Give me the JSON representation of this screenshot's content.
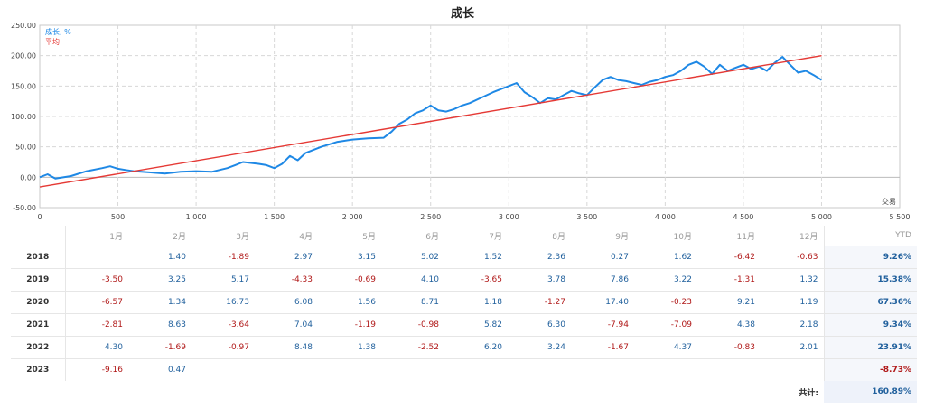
{
  "chart_data": {
    "type": "line",
    "title": "成长",
    "xlabel": "交易",
    "ylabel": "",
    "xlim": [
      0,
      5500
    ],
    "ylim": [
      -50,
      250
    ],
    "x_ticks": [
      "0",
      "500",
      "1 000",
      "1 500",
      "2 000",
      "2 500",
      "3 000",
      "3 500",
      "4 000",
      "4 500",
      "5 000",
      "5 500"
    ],
    "y_ticks": [
      "250.00",
      "200.00",
      "150.00",
      "100.00",
      "50.00",
      "0.00",
      "-50.00"
    ],
    "grid": true,
    "legend_position": "top-left",
    "series": [
      {
        "name": "成长, %",
        "color": "#1e88e5",
        "points": [
          [
            0,
            0
          ],
          [
            50,
            5
          ],
          [
            100,
            -2
          ],
          [
            200,
            2
          ],
          [
            300,
            10
          ],
          [
            400,
            15
          ],
          [
            450,
            18
          ],
          [
            500,
            14
          ],
          [
            550,
            12
          ],
          [
            600,
            10
          ],
          [
            700,
            8
          ],
          [
            800,
            6
          ],
          [
            900,
            9
          ],
          [
            1000,
            10
          ],
          [
            1100,
            9
          ],
          [
            1200,
            15
          ],
          [
            1250,
            20
          ],
          [
            1300,
            25
          ],
          [
            1400,
            22
          ],
          [
            1450,
            20
          ],
          [
            1500,
            15
          ],
          [
            1550,
            22
          ],
          [
            1600,
            35
          ],
          [
            1650,
            28
          ],
          [
            1700,
            40
          ],
          [
            1800,
            50
          ],
          [
            1900,
            58
          ],
          [
            2000,
            62
          ],
          [
            2100,
            64
          ],
          [
            2200,
            65
          ],
          [
            2250,
            75
          ],
          [
            2300,
            88
          ],
          [
            2350,
            95
          ],
          [
            2400,
            105
          ],
          [
            2450,
            110
          ],
          [
            2500,
            118
          ],
          [
            2550,
            110
          ],
          [
            2600,
            108
          ],
          [
            2650,
            112
          ],
          [
            2700,
            118
          ],
          [
            2750,
            122
          ],
          [
            2800,
            128
          ],
          [
            2900,
            140
          ],
          [
            3000,
            150
          ],
          [
            3050,
            155
          ],
          [
            3100,
            140
          ],
          [
            3150,
            132
          ],
          [
            3200,
            122
          ],
          [
            3250,
            130
          ],
          [
            3300,
            128
          ],
          [
            3350,
            135
          ],
          [
            3400,
            142
          ],
          [
            3450,
            138
          ],
          [
            3500,
            135
          ],
          [
            3550,
            148
          ],
          [
            3600,
            160
          ],
          [
            3650,
            165
          ],
          [
            3700,
            160
          ],
          [
            3750,
            158
          ],
          [
            3800,
            155
          ],
          [
            3850,
            152
          ],
          [
            3900,
            157
          ],
          [
            3950,
            160
          ],
          [
            4000,
            165
          ],
          [
            4050,
            168
          ],
          [
            4100,
            175
          ],
          [
            4150,
            185
          ],
          [
            4200,
            190
          ],
          [
            4250,
            182
          ],
          [
            4300,
            170
          ],
          [
            4350,
            185
          ],
          [
            4400,
            175
          ],
          [
            4450,
            180
          ],
          [
            4500,
            185
          ],
          [
            4550,
            178
          ],
          [
            4600,
            182
          ],
          [
            4650,
            175
          ],
          [
            4700,
            188
          ],
          [
            4750,
            198
          ],
          [
            4800,
            185
          ],
          [
            4850,
            172
          ],
          [
            4900,
            175
          ],
          [
            4950,
            168
          ],
          [
            5000,
            160
          ]
        ]
      },
      {
        "name": "平均",
        "color": "#e53935",
        "points": [
          [
            0,
            -16
          ],
          [
            5000,
            200
          ]
        ]
      }
    ]
  },
  "table": {
    "months": [
      "1月",
      "2月",
      "3月",
      "4月",
      "5月",
      "6月",
      "7月",
      "8月",
      "9月",
      "10月",
      "11月",
      "12月"
    ],
    "ytd_label": "YTD",
    "rows": [
      {
        "year": "2018",
        "values": [
          "",
          "1.40",
          "-1.89",
          "2.97",
          "3.15",
          "5.02",
          "1.52",
          "2.36",
          "0.27",
          "1.62",
          "-6.42",
          "-0.63"
        ],
        "ytd": "9.26%"
      },
      {
        "year": "2019",
        "values": [
          "-3.50",
          "3.25",
          "5.17",
          "-4.33",
          "-0.69",
          "4.10",
          "-3.65",
          "3.78",
          "7.86",
          "3.22",
          "-1.31",
          "1.32"
        ],
        "ytd": "15.38%"
      },
      {
        "year": "2020",
        "values": [
          "-6.57",
          "1.34",
          "16.73",
          "6.08",
          "1.56",
          "8.71",
          "1.18",
          "-1.27",
          "17.40",
          "-0.23",
          "9.21",
          "1.19"
        ],
        "ytd": "67.36%"
      },
      {
        "year": "2021",
        "values": [
          "-2.81",
          "8.63",
          "-3.64",
          "7.04",
          "-1.19",
          "-0.98",
          "5.82",
          "6.30",
          "-7.94",
          "-7.09",
          "4.38",
          "2.18"
        ],
        "ytd": "9.34%"
      },
      {
        "year": "2022",
        "values": [
          "4.30",
          "-1.69",
          "-0.97",
          "8.48",
          "1.38",
          "-2.52",
          "6.20",
          "3.24",
          "-1.67",
          "4.37",
          "-0.83",
          "2.01"
        ],
        "ytd": "23.91%"
      },
      {
        "year": "2023",
        "values": [
          "-9.16",
          "0.47",
          "",
          "",
          "",
          "",
          "",
          "",
          "",
          "",
          "",
          ""
        ],
        "ytd": "-8.73%"
      }
    ],
    "total_label": "共计:",
    "total_value": "160.89%"
  }
}
